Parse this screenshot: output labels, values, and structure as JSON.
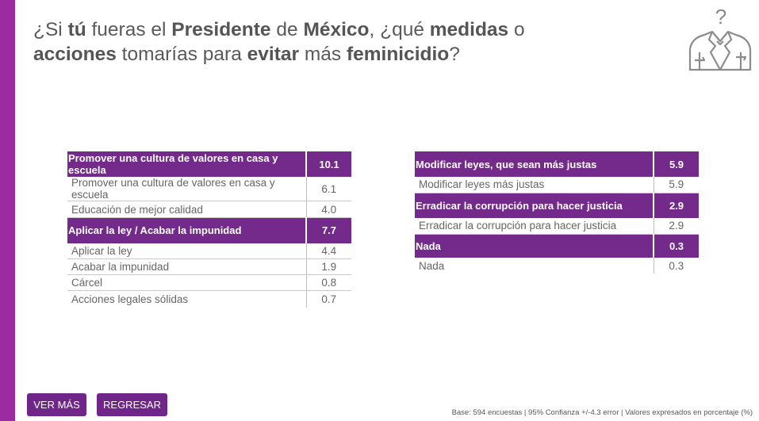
{
  "title": {
    "t1": "¿Si ",
    "b1": "tú",
    "t2": " fueras el ",
    "b2": "Presidente",
    "t3": " de ",
    "b3": "México",
    "t4": ", ¿qué ",
    "b4": "medidas",
    "t5": " o",
    "b5": "acciones",
    "t6": " tomarías para ",
    "b6": "evitar",
    "t7": " más ",
    "b7": "feminicidio",
    "t8": "?"
  },
  "logo": {
    "icon": "question-suit-icon",
    "glyph": "?"
  },
  "left_table": [
    {
      "type": "header",
      "label": "Promover una cultura de valores en casa y escuela",
      "value": "10.1"
    },
    {
      "type": "row",
      "label": "Promover una cultura de valores en casa y escuela",
      "value": "6.1"
    },
    {
      "type": "row",
      "label": "Educación de mejor calidad",
      "value": "4.0"
    },
    {
      "type": "header",
      "label": "Aplicar la ley / Acabar la impunidad",
      "value": "7.7"
    },
    {
      "type": "row",
      "label": "Aplicar la ley",
      "value": "4.4"
    },
    {
      "type": "row",
      "label": "Acabar la impunidad",
      "value": "1.9"
    },
    {
      "type": "row",
      "label": "Cárcel",
      "value": "0.8"
    },
    {
      "type": "row",
      "label": "Acciones legales sólidas",
      "value": "0.7"
    }
  ],
  "right_table": [
    {
      "type": "header",
      "label": "Modificar leyes, que sean más justas",
      "value": "5.9"
    },
    {
      "type": "row",
      "label": "Modificar leyes más justas",
      "value": "5.9"
    },
    {
      "type": "header",
      "label": "Erradicar la corrupción para hacer justicia",
      "value": "2.9"
    },
    {
      "type": "row",
      "label": "Erradicar la corrupción para hacer justicia",
      "value": "2.9"
    },
    {
      "type": "header",
      "label": "Nada",
      "value": "0.3"
    },
    {
      "type": "row",
      "label": "Nada",
      "value": "0.3"
    }
  ],
  "buttons": {
    "ver_mas": "VER MÁS",
    "regresar": "REGRESAR"
  },
  "footer": "Base: 594 encuestas | 95% Confianza +/-4.3 error | Valores expresados en porcentaje (%)",
  "colors": {
    "accent": "#732a8a",
    "left_bar": "#9c2aa0",
    "text": "#595959"
  }
}
